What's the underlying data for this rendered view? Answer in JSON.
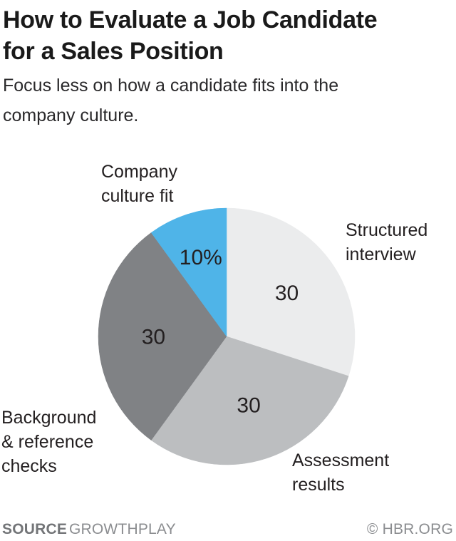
{
  "header": {
    "title": "How to Evaluate a Job Candidate\nfor a Sales Position",
    "subtitle": "Focus less on how a candidate fits into the\ncompany culture."
  },
  "chart_data": {
    "type": "pie",
    "title": "How to Evaluate a Job Candidate for a Sales Position",
    "total": 100,
    "start_angle_deg": 0,
    "direction": "clockwise",
    "legend_position": "outside-callouts",
    "slices": [
      {
        "label": "Structured interview",
        "callout": "Structured\ninterview",
        "value": 30,
        "display_value": "30",
        "color": "#ebeced",
        "label_radius": 0.58
      },
      {
        "label": "Assessment results",
        "callout": "Assessment\nresults",
        "value": 30,
        "display_value": "30",
        "color": "#bcbec0",
        "label_radius": 0.56
      },
      {
        "label": "Background & reference checks",
        "callout": "Background\n& reference\nchecks",
        "value": 30,
        "display_value": "30",
        "color": "#808285",
        "label_radius": 0.57
      },
      {
        "label": "Company culture fit",
        "callout": "Company\nculture fit",
        "value": 10,
        "display_value": "10%",
        "color": "#4fb4e8",
        "label_radius": 0.65
      }
    ]
  },
  "footer": {
    "source_label": "SOURCE",
    "source_value": "GROWTHPLAY",
    "credit": "© HBR.ORG"
  }
}
